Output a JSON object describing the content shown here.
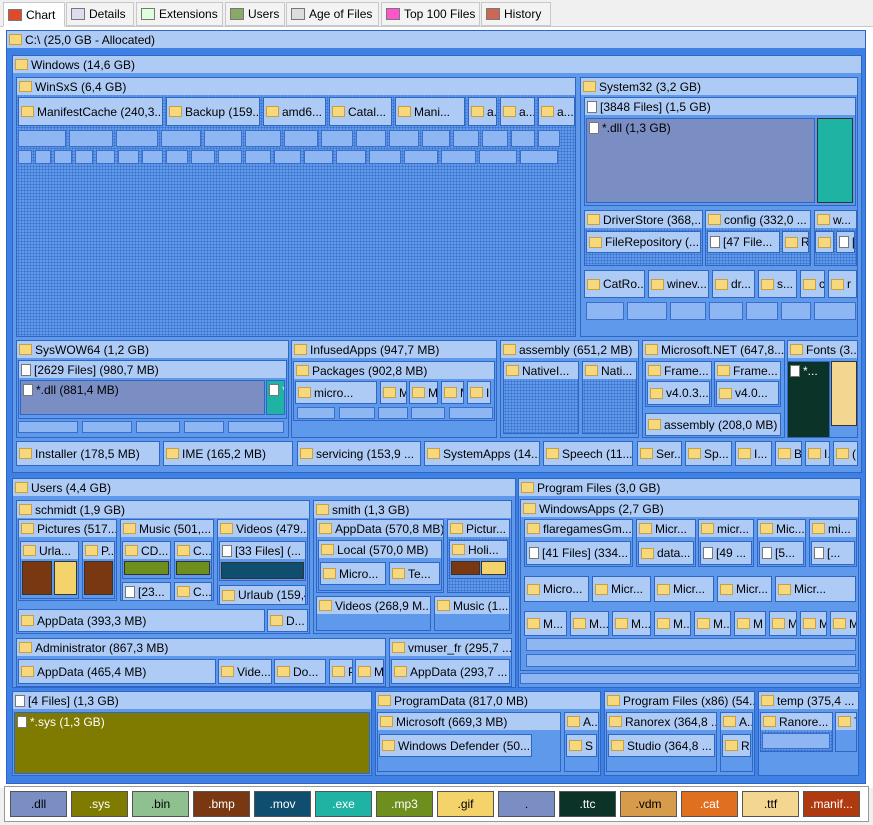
{
  "tabs": [
    {
      "label": "Chart"
    },
    {
      "label": "Details"
    },
    {
      "label": "Extensions"
    },
    {
      "label": "Users"
    },
    {
      "label": "Age of Files"
    },
    {
      "label": "Top 100 Files"
    },
    {
      "label": "History"
    }
  ],
  "treemap": {
    "nodes": [
      {
        "label": "C:\\ (25,0 GB - Allocated)"
      },
      {
        "label": "Windows (14,6 GB)"
      },
      {
        "label": "WinSxS (6,4 GB)"
      },
      {
        "label": "ManifestCache (240,3..."
      },
      {
        "label": "Backup (159..."
      },
      {
        "label": "amd6..."
      },
      {
        "label": "Catal..."
      },
      {
        "label": "Mani..."
      },
      {
        "label": "a..."
      },
      {
        "label": "a..."
      },
      {
        "label": "a..."
      },
      {
        "label": "System32 (3,2 GB)"
      },
      {
        "label": "[3848 Files] (1,5 GB)"
      },
      {
        "label": "*.dll (1,3 GB)"
      },
      {
        "label": "DriverStore (368,..."
      },
      {
        "label": "FileRepository (..."
      },
      {
        "label": "config (332,0 ..."
      },
      {
        "label": "[47 File..."
      },
      {
        "label": "R..."
      },
      {
        "label": "w..."
      },
      {
        "label": "R..."
      },
      {
        "label": "[.."
      },
      {
        "label": "CatRo..."
      },
      {
        "label": "winev..."
      },
      {
        "label": "dr..."
      },
      {
        "label": "s..."
      },
      {
        "label": "c"
      },
      {
        "label": "r"
      },
      {
        "label": "SysWOW64 (1,2 GB)"
      },
      {
        "label": "[2629 Files] (980,7 MB)"
      },
      {
        "label": "*.dll (881,4 MB)"
      },
      {
        "label": "*."
      },
      {
        "label": "InfusedApps (947,7 MB)"
      },
      {
        "label": "Packages (902,8 MB)"
      },
      {
        "label": "micro..."
      },
      {
        "label": "M..."
      },
      {
        "label": "M"
      },
      {
        "label": "M"
      },
      {
        "label": "I"
      },
      {
        "label": "assembly (651,2 MB)"
      },
      {
        "label": "NativeI..."
      },
      {
        "label": "Nati..."
      },
      {
        "label": "Microsoft.NET (647,8..."
      },
      {
        "label": "Frame..."
      },
      {
        "label": "v4.0.3..."
      },
      {
        "label": "Frame..."
      },
      {
        "label": "v4.0..."
      },
      {
        "label": "assembly (208,0 MB)"
      },
      {
        "label": "Fonts (3..."
      },
      {
        "label": "*..."
      },
      {
        "label": "Installer (178,5 MB)"
      },
      {
        "label": "IME (165,2 MB)"
      },
      {
        "label": "servicing (153,9 ..."
      },
      {
        "label": "SystemApps (14..."
      },
      {
        "label": "Speech (11..."
      },
      {
        "label": "Ser..."
      },
      {
        "label": "Sp..."
      },
      {
        "label": "I..."
      },
      {
        "label": "B"
      },
      {
        "label": "I..."
      },
      {
        "label": "("
      },
      {
        "label": "Users (4,4 GB)"
      },
      {
        "label": "schmidt (1,9 GB)"
      },
      {
        "label": "Pictures (517..."
      },
      {
        "label": "Urla..."
      },
      {
        "label": "P..."
      },
      {
        "label": "Music (501,..."
      },
      {
        "label": "CD..."
      },
      {
        "label": "C..."
      },
      {
        "label": "[23..."
      },
      {
        "label": "C..."
      },
      {
        "label": "Videos (479..."
      },
      {
        "label": "[33 Files] (..."
      },
      {
        "label": "Urlaub (159,4..."
      },
      {
        "label": "AppData (393,3 MB)"
      },
      {
        "label": "D..."
      },
      {
        "label": "smith (1,3 GB)"
      },
      {
        "label": "AppData (570,8 MB)"
      },
      {
        "label": "Local (570,0 MB)"
      },
      {
        "label": "Micro..."
      },
      {
        "label": "Te..."
      },
      {
        "label": "Pictur..."
      },
      {
        "label": "Holi..."
      },
      {
        "label": "Videos (268,9 M..."
      },
      {
        "label": "Music (1..."
      },
      {
        "label": "Administrator (867,3 MB)"
      },
      {
        "label": "AppData (465,4 MB)"
      },
      {
        "label": "Vide..."
      },
      {
        "label": "Do..."
      },
      {
        "label": "P"
      },
      {
        "label": "M"
      },
      {
        "label": "vmuser_fr (295,7 ..."
      },
      {
        "label": "AppData (293,7 ..."
      },
      {
        "label": "Program Files (3,0 GB)"
      },
      {
        "label": "WindowsApps (2,7 GB)"
      },
      {
        "label": "flaregamesGm..."
      },
      {
        "label": "[41 Files] (334..."
      },
      {
        "label": "Micr..."
      },
      {
        "label": "data..."
      },
      {
        "label": "micr..."
      },
      {
        "label": "[49 ..."
      },
      {
        "label": "Mic..."
      },
      {
        "label": "[5..."
      },
      {
        "label": "mi..."
      },
      {
        "label": "[..."
      },
      {
        "label": "Micro..."
      },
      {
        "label": "Micr..."
      },
      {
        "label": "Micr..."
      },
      {
        "label": "Micr..."
      },
      {
        "label": "Micr..."
      },
      {
        "label": "M..."
      },
      {
        "label": "M..."
      },
      {
        "label": "M..."
      },
      {
        "label": "M..."
      },
      {
        "label": "M..."
      },
      {
        "label": "M"
      },
      {
        "label": "M..."
      },
      {
        "label": "M"
      },
      {
        "label": "M"
      },
      {
        "label": "[4 Files] (1,3 GB)"
      },
      {
        "label": "*.sys (1,3 GB)"
      },
      {
        "label": "ProgramData (817,0 MB)"
      },
      {
        "label": "Microsoft (669,3 MB)"
      },
      {
        "label": "Windows Defender (50..."
      },
      {
        "label": "A..."
      },
      {
        "label": "S"
      },
      {
        "label": "Program Files (x86) (54..."
      },
      {
        "label": "Ranorex (364,8 ..."
      },
      {
        "label": "Studio (364,8 ..."
      },
      {
        "label": "A..."
      },
      {
        "label": "R"
      },
      {
        "label": "temp (375,4 ..."
      },
      {
        "label": "Ranore..."
      },
      {
        "label": "T"
      }
    ]
  },
  "legend": {
    "items": [
      {
        "label": ".dll",
        "color": "#7b8ec3"
      },
      {
        "label": ".sys",
        "color": "#7f7a00"
      },
      {
        "label": ".bin",
        "color": "#8fc08f"
      },
      {
        "label": ".bmp",
        "color": "#7a3812"
      },
      {
        "label": ".mov",
        "color": "#0f4e6e"
      },
      {
        "label": ".exe",
        "color": "#1fb3a3"
      },
      {
        "label": ".mp3",
        "color": "#6e8e1e"
      },
      {
        "label": ".gif",
        "color": "#f5d36b"
      },
      {
        "label": ".",
        "color": "#7b8ec3"
      },
      {
        "label": ".ttc",
        "color": "#0b3328"
      },
      {
        "label": ".vdm",
        "color": "#d69b4b"
      },
      {
        "label": ".cat",
        "color": "#e07020"
      },
      {
        "label": ".ttf",
        "color": "#f3d690"
      },
      {
        "label": ".manif...",
        "color": "#b03a10"
      }
    ]
  }
}
